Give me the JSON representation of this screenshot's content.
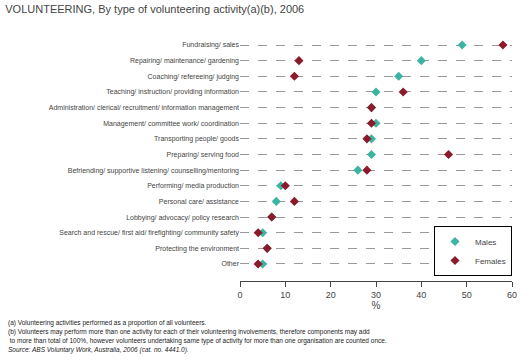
{
  "chart_data": {
    "type": "dot",
    "title": "VOLUNTEERING, By type of volunteering activity(a)(b), 2006",
    "categories": [
      "Fundraising/ sales",
      "Repairing/ maintenance/ gardening",
      "Coaching/ refereeing/ judging",
      "Teaching/ instruction/ providing information",
      "Administration/ clerical/ recruitment/ information management",
      "Management/ committee work/ coordination",
      "Transporting people/ goods",
      "Preparing/ serving food",
      "Befriending/ supportive listening/ counselling/mentoring",
      "Performing/ media production",
      "Personal care/ assistance",
      "Lobbying/ advocacy/ policy research",
      "Search and rescue/ first aid/ firefighting/ community safety",
      "Protecting the environment",
      "Other"
    ],
    "series": [
      {
        "name": "Males",
        "color": "#3cb4a4",
        "marker": "diamond",
        "values": [
          49,
          40,
          35,
          30,
          29,
          30,
          29,
          29,
          26,
          9,
          8,
          7,
          5,
          6,
          5
        ]
      },
      {
        "name": "Females",
        "color": "#8b1a2a",
        "marker": "diamond",
        "values": [
          58,
          13,
          12,
          36,
          29,
          29,
          28,
          46,
          28,
          10,
          12,
          7,
          4,
          6,
          4
        ]
      }
    ],
    "orientation": "horizontal",
    "xlabel": "%",
    "xlim": [
      0,
      60
    ],
    "xticks": [
      0,
      10,
      20,
      30,
      40,
      50,
      60
    ],
    "grid": "y",
    "legend": "lower right",
    "annotations": [
      "(a) Volunteering activities performed as a proportion of all volunteers.",
      "(b) Volunteers may perform more than one activity for each of their volunteering involvements, therefore components may add",
      " to more than total of 100%, however volunteers undertaking same type of activity for more than one organisation are counted once.",
      "Source: ABS Voluntary Work, Australia, 2006 (cat. no. 4441.0)."
    ]
  }
}
